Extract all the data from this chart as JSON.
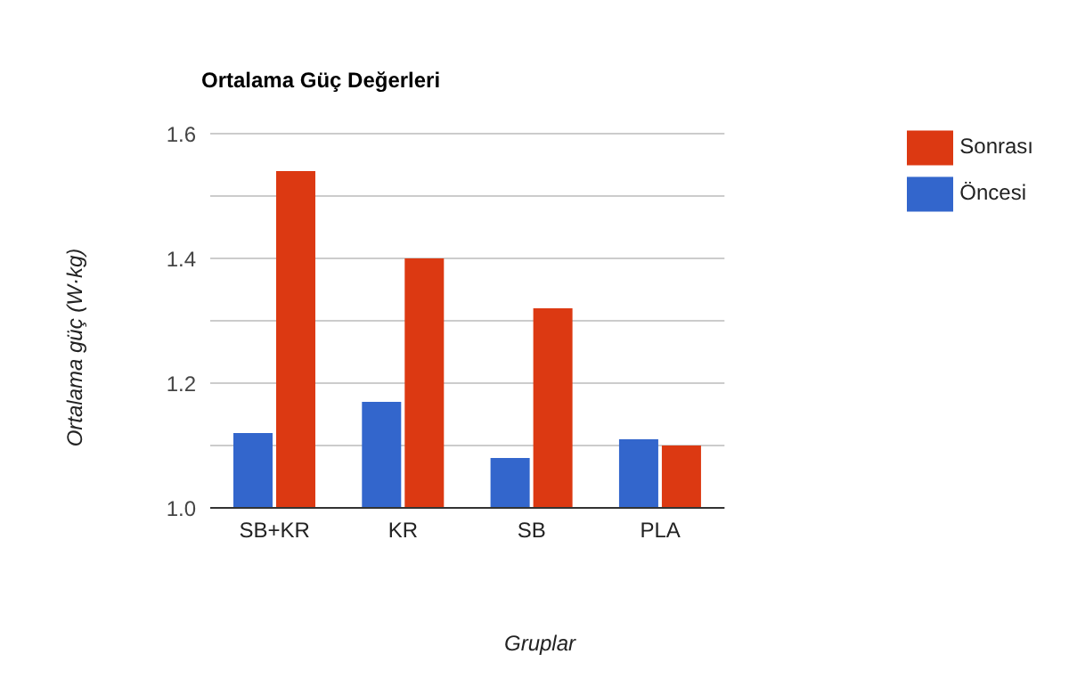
{
  "chart_data": {
    "type": "bar",
    "title": "Ortalama Güç Değerleri",
    "xlabel": "Gruplar",
    "ylabel": "Ortalama güç (W·kg)",
    "categories": [
      "SB+KR",
      "KR",
      "SB",
      "PLA"
    ],
    "series": [
      {
        "name": "Öncesi",
        "color": "#3366cc",
        "values": [
          1.12,
          1.17,
          1.08,
          1.11
        ]
      },
      {
        "name": "Sonrası",
        "color": "#dc3912",
        "values": [
          1.54,
          1.4,
          1.32,
          1.1
        ]
      }
    ],
    "ylim": [
      1.0,
      1.6
    ],
    "yticks": [
      {
        "value": 1.0,
        "label": "1.0"
      },
      {
        "value": 1.1,
        "label": null
      },
      {
        "value": 1.2,
        "label": "1.2"
      },
      {
        "value": 1.3,
        "label": null
      },
      {
        "value": 1.4,
        "label": "1.4"
      },
      {
        "value": 1.5,
        "label": null
      },
      {
        "value": 1.6,
        "label": "1.6"
      }
    ],
    "grid": "y",
    "legend": "top right"
  }
}
